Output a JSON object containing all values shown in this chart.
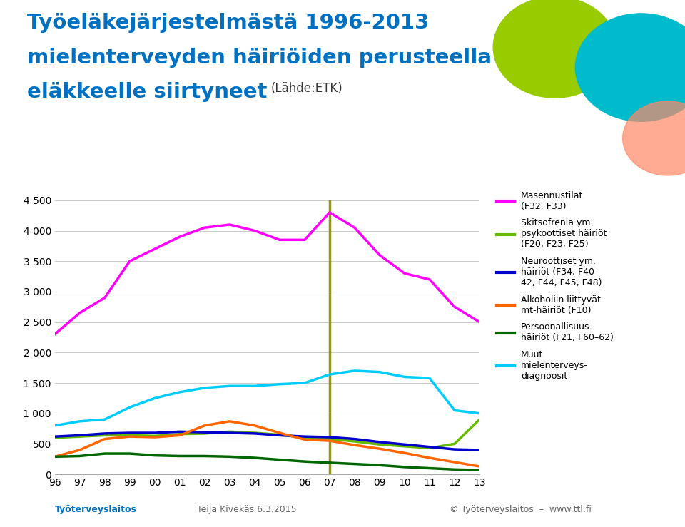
{
  "title_line1": "Työeläkejärjestelmästä 1996-2013",
  "title_line2": "mielenterveyden häiriöiden perusteella",
  "title_line3": "eläkkeelle siirtyneet",
  "title_source": "(Lähde:ETK)",
  "years": [
    1996,
    1997,
    1998,
    1999,
    2000,
    2001,
    2002,
    2003,
    2004,
    2005,
    2006,
    2007,
    2008,
    2009,
    2010,
    2011,
    2012,
    2013
  ],
  "masennustilat": [
    2300,
    2650,
    2900,
    3500,
    3700,
    3900,
    4050,
    4100,
    4000,
    3850,
    3850,
    4300,
    4050,
    3600,
    3300,
    3200,
    2750,
    2500
  ],
  "skitsofrenia": [
    600,
    620,
    640,
    640,
    630,
    660,
    670,
    700,
    680,
    650,
    600,
    580,
    540,
    490,
    460,
    430,
    500,
    900
  ],
  "neuroottiset": [
    620,
    640,
    670,
    680,
    680,
    700,
    690,
    680,
    670,
    640,
    620,
    610,
    580,
    530,
    490,
    450,
    410,
    400
  ],
  "alkoholiin": [
    290,
    400,
    580,
    620,
    610,
    640,
    800,
    870,
    800,
    680,
    570,
    550,
    480,
    420,
    350,
    270,
    200,
    130
  ],
  "persoonallisuus": [
    290,
    300,
    340,
    340,
    310,
    300,
    300,
    290,
    270,
    240,
    210,
    190,
    170,
    150,
    120,
    100,
    80,
    70
  ],
  "muut": [
    800,
    870,
    900,
    1100,
    1250,
    1350,
    1420,
    1450,
    1450,
    1480,
    1500,
    1640,
    1700,
    1680,
    1600,
    1580,
    1050,
    1000
  ],
  "colors": {
    "masennustilat": "#FF00FF",
    "skitsofrenia": "#66BB00",
    "neuroottiset": "#0000CC",
    "alkoholiin": "#FF6600",
    "persoonallisuus": "#006600",
    "muut": "#00CCFF"
  },
  "vline_year": 2007,
  "vline_color": "#999900",
  "ylim": [
    0,
    4500
  ],
  "yticks": [
    0,
    500,
    1000,
    1500,
    2000,
    2500,
    3000,
    3500,
    4000,
    4500
  ],
  "legend_labels": [
    "Masennustilat\n(F32, F33)",
    "Skitsofrenia ym.\npsykoottiset häiriöt\n(F20, F23, F25)",
    "Neuroottiset ym.\nhäiriöt (F34, F40-\n42, F44, F45, F48)",
    "Alkoholiin liittyvät\nmt-häiriöt (F10)",
    "Persoonallisuus-\nhäiriöt (F21, F60–62)",
    "Muut\nmielenterveys-\ndiagnoosit"
  ],
  "footer_left": "Teija Kivekäs 6.3.2015",
  "footer_right": "© Työterveyslaitos  –  www.ttl.fi",
  "bg_color": "#FFFFFF",
  "plot_bg_color": "#FFFFFF",
  "grid_color": "#CCCCCC",
  "title_color": "#0070C0",
  "linewidth": 2.5
}
